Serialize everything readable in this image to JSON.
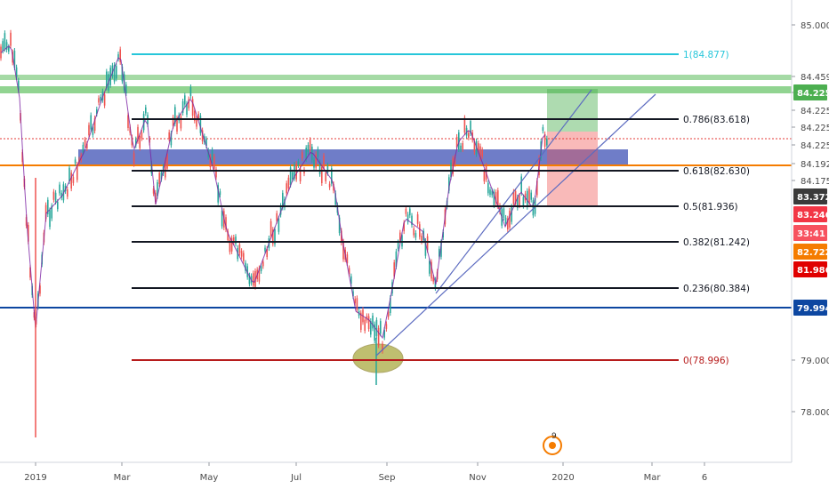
{
  "chart_data": {
    "type": "line",
    "title": "",
    "ylim": [
      77.5,
      85.5
    ],
    "x_labels": [
      "2019",
      "Mar",
      "May",
      "Jul",
      "Sep",
      "Nov",
      "2020",
      "Mar",
      "6"
    ],
    "y_ticks": [
      "85.000",
      "84.459",
      "84.225",
      "84.225",
      "84.225",
      "84.192",
      "84.175",
      "79.000",
      "78.000"
    ],
    "price_badges": [
      {
        "id": "b84225",
        "label": "84.225",
        "color": "#4caf50"
      },
      {
        "id": "b83372",
        "label": "83.372",
        "color": "#3a3a3a"
      },
      {
        "id": "b83246",
        "label": "83.246",
        "color": "#f23645"
      },
      {
        "id": "b3341",
        "label": "33:41",
        "color": "#f7525f"
      },
      {
        "id": "b82722",
        "label": "82.722",
        "color": "#f57c00"
      },
      {
        "id": "b81986",
        "label": "81.986",
        "color": "#e00000"
      },
      {
        "id": "b79994",
        "label": "79.994",
        "color": "#0d47a1"
      }
    ],
    "fibonacci_levels": [
      {
        "ratio": 1,
        "price": 84.877,
        "label": "1(84.877)",
        "color": "#26c6da"
      },
      {
        "ratio": 0.786,
        "price": 83.618,
        "label": "0.786(83.618)",
        "color": "#131722"
      },
      {
        "ratio": 0.618,
        "price": 82.63,
        "label": "0.618(82.630)",
        "color": "#131722"
      },
      {
        "ratio": 0.5,
        "price": 81.936,
        "label": "0.5(81.936)",
        "color": "#131722"
      },
      {
        "ratio": 0.382,
        "price": 81.242,
        "label": "0.382(81.242)",
        "color": "#131722"
      },
      {
        "ratio": 0.236,
        "price": 80.384,
        "label": "0.236(80.384)",
        "color": "#131722"
      },
      {
        "ratio": 0,
        "price": 78.996,
        "label": "0(78.996)",
        "color": "#b71c1c"
      }
    ],
    "horizontal_lines": [
      {
        "name": "blue-support-line",
        "price": 79.994,
        "color": "#0d47a1"
      },
      {
        "name": "orange-level-line",
        "price": 82.72,
        "color": "#f57c00"
      }
    ],
    "candles_shown": true,
    "grid": false,
    "timezone_badge": "9"
  }
}
